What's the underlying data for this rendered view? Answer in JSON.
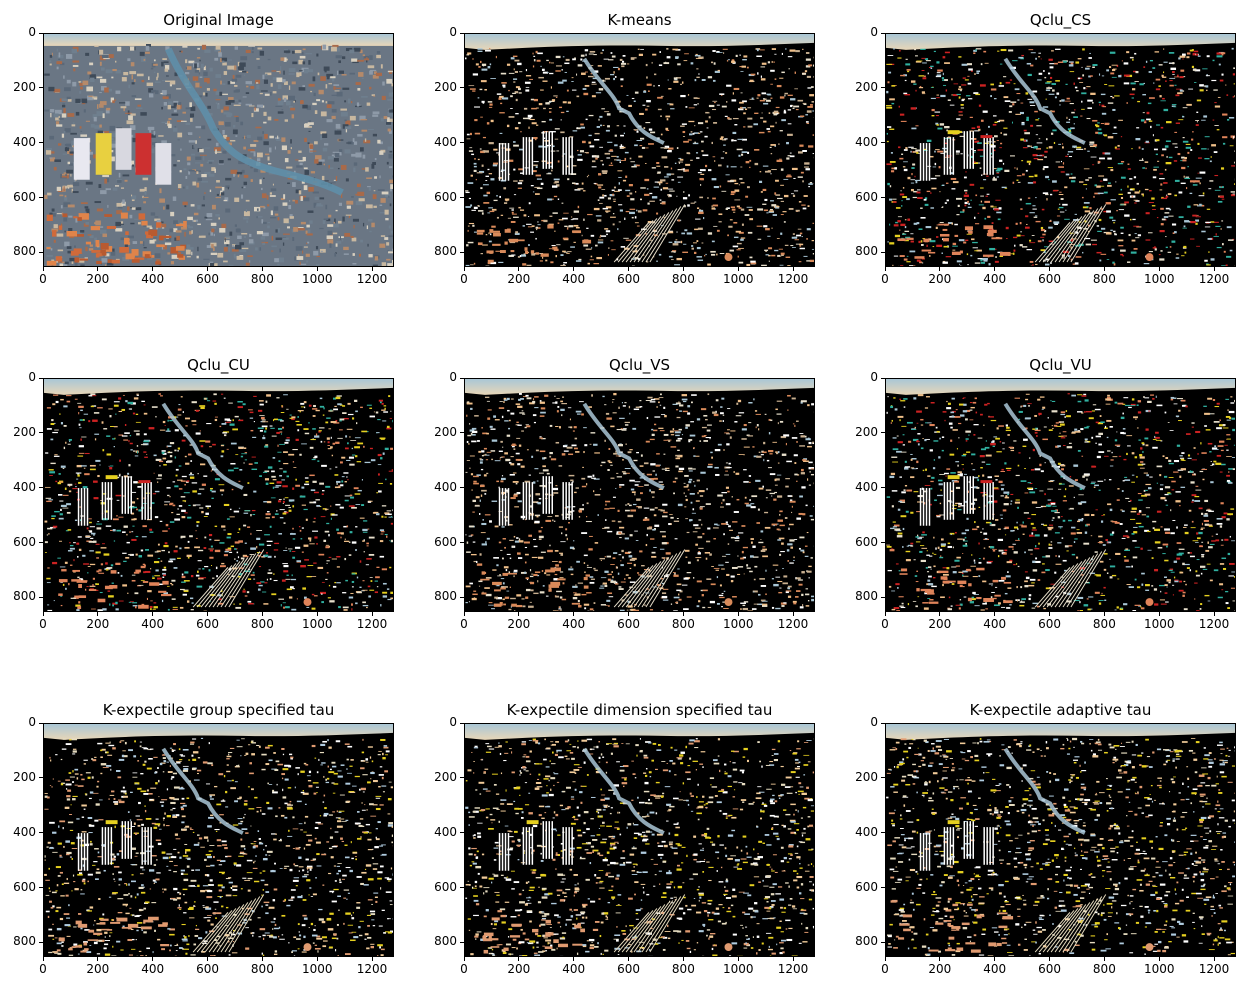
{
  "chart_data": [
    {
      "type": "image",
      "title": "Original Image",
      "render": "photo",
      "xticks": [
        0,
        200,
        400,
        600,
        800,
        1000,
        1200
      ],
      "yticks": [
        0,
        200,
        400,
        600,
        800
      ],
      "xlim": [
        0,
        1280
      ],
      "ylim": [
        853,
        0
      ]
    },
    {
      "type": "image",
      "title": "K-means",
      "render": "clustered",
      "seed": 11,
      "palette": "kmeans",
      "xticks": [
        0,
        200,
        400,
        600,
        800,
        1000,
        1200
      ],
      "yticks": [
        0,
        200,
        400,
        600,
        800
      ],
      "xlim": [
        0,
        1280
      ],
      "ylim": [
        853,
        0
      ]
    },
    {
      "type": "image",
      "title": "Qclu_CS",
      "render": "clustered",
      "seed": 23,
      "palette": "qclu",
      "xticks": [
        0,
        200,
        400,
        600,
        800,
        1000,
        1200
      ],
      "yticks": [
        0,
        200,
        400,
        600,
        800
      ],
      "xlim": [
        0,
        1280
      ],
      "ylim": [
        853,
        0
      ]
    },
    {
      "type": "image",
      "title": "Qclu_CU",
      "render": "clustered",
      "seed": 37,
      "palette": "qclu",
      "xticks": [
        0,
        200,
        400,
        600,
        800,
        1000,
        1200
      ],
      "yticks": [
        0,
        200,
        400,
        600,
        800
      ],
      "xlim": [
        0,
        1280
      ],
      "ylim": [
        853,
        0
      ]
    },
    {
      "type": "image",
      "title": "Qclu_VS",
      "render": "clustered",
      "seed": 41,
      "palette": "kmeans",
      "xticks": [
        0,
        200,
        400,
        600,
        800,
        1000,
        1200
      ],
      "yticks": [
        0,
        200,
        400,
        600,
        800
      ],
      "xlim": [
        0,
        1280
      ],
      "ylim": [
        853,
        0
      ]
    },
    {
      "type": "image",
      "title": "Qclu_VU",
      "render": "clustered",
      "seed": 53,
      "palette": "qclu",
      "xticks": [
        0,
        200,
        400,
        600,
        800,
        1000,
        1200
      ],
      "yticks": [
        0,
        200,
        400,
        600,
        800
      ],
      "xlim": [
        0,
        1280
      ],
      "ylim": [
        853,
        0
      ]
    },
    {
      "type": "image",
      "title": "K-expectile group specified tau",
      "render": "clustered",
      "seed": 67,
      "palette": "expectile",
      "xticks": [
        0,
        200,
        400,
        600,
        800,
        1000,
        1200
      ],
      "yticks": [
        0,
        200,
        400,
        600,
        800
      ],
      "xlim": [
        0,
        1280
      ],
      "ylim": [
        853,
        0
      ]
    },
    {
      "type": "image",
      "title": "K-expectile dimension specified tau",
      "render": "clustered",
      "seed": 71,
      "palette": "expectile",
      "xticks": [
        0,
        200,
        400,
        600,
        800,
        1000,
        1200
      ],
      "yticks": [
        0,
        200,
        400,
        600,
        800
      ],
      "xlim": [
        0,
        1280
      ],
      "ylim": [
        853,
        0
      ]
    },
    {
      "type": "image",
      "title": "K-expectile adaptive tau",
      "render": "clustered",
      "seed": 83,
      "palette": "expectile",
      "xticks": [
        0,
        200,
        400,
        600,
        800,
        1000,
        1200
      ],
      "yticks": [
        0,
        200,
        400,
        600,
        800
      ],
      "xlim": [
        0,
        1280
      ],
      "ylim": [
        853,
        0
      ]
    }
  ],
  "palettes": {
    "kmeans": [
      "#ffffff",
      "#e8e0cc",
      "#a9c6d6",
      "#d98a5a",
      "#f0c08a",
      "#c9b090"
    ],
    "qclu": [
      "#ffffff",
      "#e8e0cc",
      "#a9c6d6",
      "#e0845a",
      "#f0c08a",
      "#cc2222",
      "#e6d020",
      "#30b0a0"
    ],
    "expectile": [
      "#ffffff",
      "#e6dcc0",
      "#b0cce0",
      "#e09a70",
      "#f2cc9a",
      "#e6d020"
    ],
    "photo": [
      "#5a6878",
      "#8e9aa8",
      "#b58a6a",
      "#c8b8a0",
      "#6f7f8e",
      "#a86a4a",
      "#d8d0c0",
      "#3e4a58"
    ]
  },
  "colors": {
    "background": "#000000",
    "sky_top": "#a9c6d6",
    "sky_bottom": "#e8d6b8",
    "river": "#5f8fa8"
  }
}
